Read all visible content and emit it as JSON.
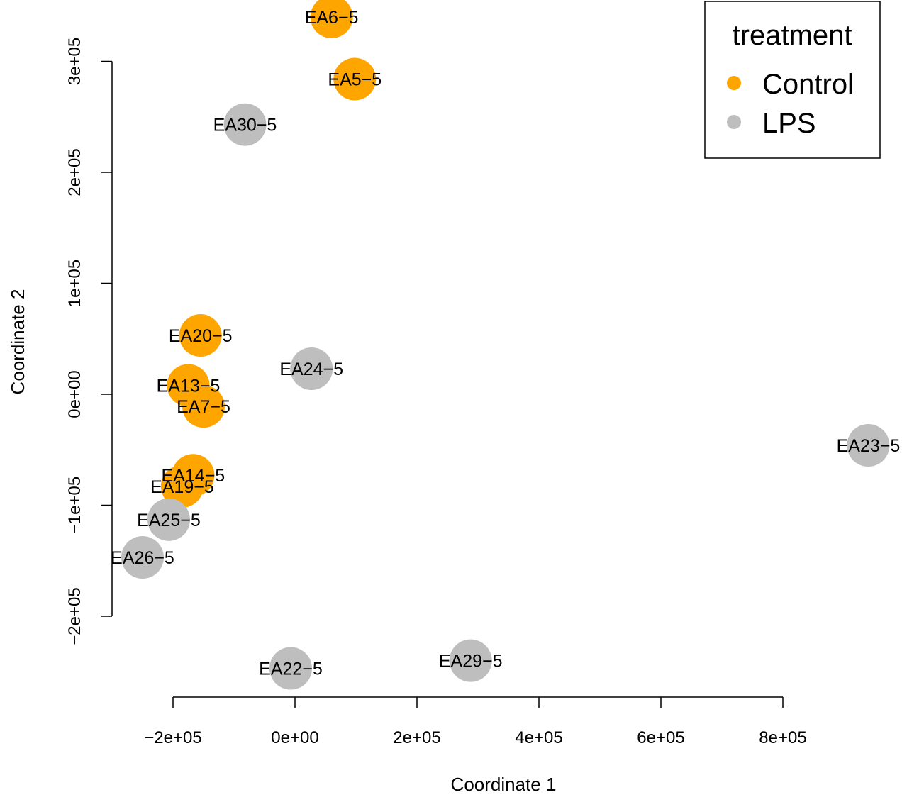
{
  "chart_data": {
    "type": "scatter",
    "xlabel": "Coordinate 1",
    "ylabel": "Coordinate 2",
    "x_ticks": [
      -200000,
      0,
      200000,
      400000,
      600000,
      800000
    ],
    "x_tick_labels": [
      "−2e+05",
      "0e+00",
      "2e+05",
      "4e+05",
      "6e+05",
      "8e+05"
    ],
    "y_ticks": [
      -200000,
      -100000,
      0,
      100000,
      200000,
      300000
    ],
    "y_tick_labels": [
      "−2e+05",
      "−1e+05",
      "0e+00",
      "1e+05",
      "2e+05",
      "3e+05"
    ],
    "xlim": [
      -290000,
      945000
    ],
    "ylim": [
      -247000,
      343000
    ],
    "legend": {
      "title": "treatment",
      "position": "top-right",
      "entries": [
        {
          "label": "Control",
          "color": "#FFA500"
        },
        {
          "label": "LPS",
          "color": "#BEBEBE"
        }
      ]
    },
    "colors": {
      "Control": "#FFA500",
      "LPS": "#BEBEBE"
    },
    "points": [
      {
        "label": "EA6−5",
        "group": "Control",
        "x": 60000,
        "y": 340000
      },
      {
        "label": "EA5−5",
        "group": "Control",
        "x": 98000,
        "y": 284000
      },
      {
        "label": "EA30−5",
        "group": "LPS",
        "x": -82000,
        "y": 243000
      },
      {
        "label": "EA20−5",
        "group": "Control",
        "x": -155000,
        "y": 53000
      },
      {
        "label": "EA24−5",
        "group": "LPS",
        "x": 27000,
        "y": 23000
      },
      {
        "label": "EA13−5",
        "group": "Control",
        "x": -175000,
        "y": 8000
      },
      {
        "label": "EA7−5",
        "group": "Control",
        "x": -150000,
        "y": -11000
      },
      {
        "label": "EA23−5",
        "group": "LPS",
        "x": 940000,
        "y": -46000
      },
      {
        "label": "EA14−5",
        "group": "Control",
        "x": -167000,
        "y": -73000
      },
      {
        "label": "EA19−5",
        "group": "Control",
        "x": -185000,
        "y": -83000
      },
      {
        "label": "EA25−5",
        "group": "LPS",
        "x": -207000,
        "y": -113000
      },
      {
        "label": "EA26−5",
        "group": "LPS",
        "x": -250000,
        "y": -147000
      },
      {
        "label": "EA22−5",
        "group": "LPS",
        "x": -7000,
        "y": -247000
      },
      {
        "label": "EA29−5",
        "group": "LPS",
        "x": 288000,
        "y": -240000
      }
    ]
  }
}
